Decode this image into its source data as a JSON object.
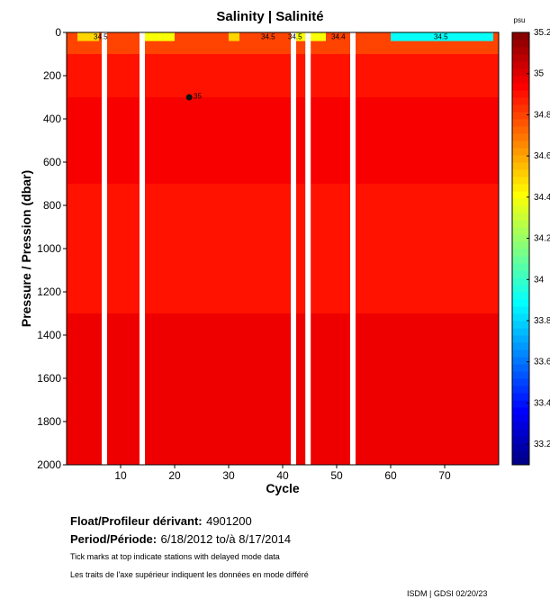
{
  "chart_data": {
    "type": "heatmap",
    "title": "Salinity | Salinité",
    "xlabel": "Cycle",
    "ylabel": "Pressure / Pression (dbar)",
    "xlim": [
      0,
      80
    ],
    "ylim": [
      2000,
      0
    ],
    "x_ticks": [
      "10",
      "20",
      "30",
      "40",
      "50",
      "60",
      "70"
    ],
    "y_ticks": [
      "0",
      "200",
      "400",
      "600",
      "800",
      "1000",
      "1200",
      "1400",
      "1600",
      "1800",
      "2000"
    ],
    "colorbar": {
      "unit": "psu",
      "range": [
        33.1,
        35.2
      ],
      "ticks": [
        "35.2",
        "35",
        "34.8",
        "34.6",
        "34.4",
        "34.2",
        "34",
        "33.8",
        "33.6",
        "33.4",
        "33.2"
      ]
    },
    "gaps_cycles": [
      [
        6.5,
        7.5
      ],
      [
        13.5,
        14.5
      ],
      [
        41.5,
        42.5
      ],
      [
        44.2,
        45.2
      ],
      [
        52.5,
        53.5
      ]
    ],
    "depth_bands": [
      {
        "from": 0,
        "to": 100,
        "value": 34.8
      },
      {
        "from": 100,
        "to": 300,
        "value": 34.9
      },
      {
        "from": 300,
        "to": 700,
        "value": 34.95
      },
      {
        "from": 700,
        "to": 1300,
        "value": 34.9
      },
      {
        "from": 1300,
        "to": 2000,
        "value": 34.97
      }
    ],
    "surface_low_salinity_cycles": [
      [
        2,
        6,
        34.5
      ],
      [
        14,
        20,
        34.4
      ],
      [
        30,
        32,
        34.5
      ],
      [
        42,
        48,
        34.4
      ],
      [
        60,
        79,
        33.9
      ]
    ],
    "contour_labels": [
      {
        "text": "34.5",
        "cycle": 5,
        "pressure": 15
      },
      {
        "text": "34.5",
        "cycle": 36,
        "pressure": 15
      },
      {
        "text": "34.5",
        "cycle": 41,
        "pressure": 15
      },
      {
        "text": "34.4",
        "cycle": 49,
        "pressure": 15
      },
      {
        "text": "34.5",
        "cycle": 68,
        "pressure": 15
      },
      {
        "text": "35",
        "cycle": 23.5,
        "pressure": 290
      }
    ],
    "marker": {
      "cycle": 22.7,
      "pressure": 300
    }
  },
  "info": {
    "float_label": "Float/Profileur dérivant:",
    "float_value": "4901200",
    "period_label": "Period/Période:",
    "period_value": "6/18/2012  to/à  8/17/2014",
    "note_en": "Tick marks at top indicate stations with delayed mode data",
    "note_fr": "Les traits de l'axe supérieur indiquent les données en mode différé",
    "stamp": "ISDM | GDSI  02/20/23"
  }
}
